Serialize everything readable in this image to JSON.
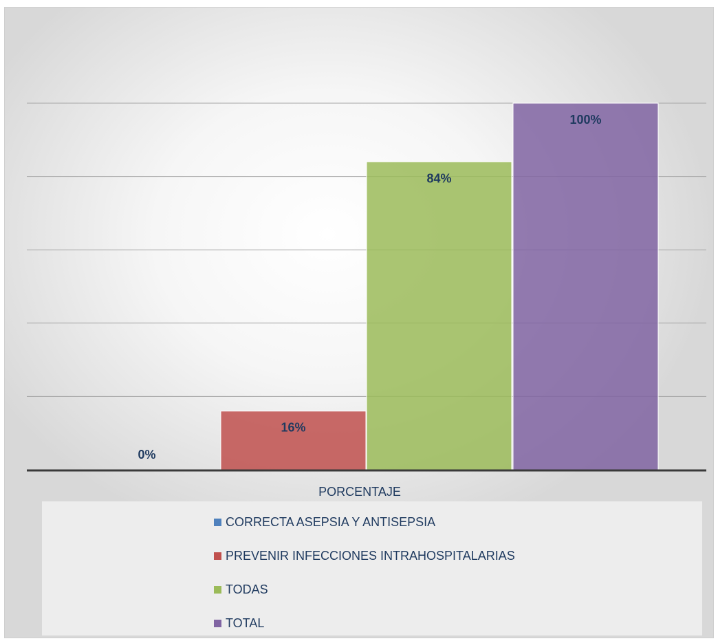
{
  "chart_data": {
    "type": "bar",
    "title": "",
    "xlabel": "PORCENTAJE",
    "ylabel": "",
    "ylim": [
      0,
      100
    ],
    "categories": [
      "PORCENTAJE"
    ],
    "series": [
      {
        "name": "CORRECTA ASEPSIA Y ANTISEPSIA",
        "values": [
          0
        ],
        "label": "0%",
        "color": "#4f81bd"
      },
      {
        "name": "PREVENIR INFECCIONES INTRAHOSPITALARIAS",
        "values": [
          16
        ],
        "label": "16%",
        "color": "#c0504d"
      },
      {
        "name": "TODAS",
        "values": [
          84
        ],
        "label": "84%",
        "color": "#9bbb59"
      },
      {
        "name": "TOTAL",
        "values": [
          100
        ],
        "label": "100%",
        "color": "#8064a2"
      }
    ],
    "grid": true,
    "legend_position": "bottom"
  },
  "legend": {
    "items": [
      {
        "label": "CORRECTA ASEPSIA Y ANTISEPSIA",
        "color": "#4f81bd"
      },
      {
        "label": "PREVENIR INFECCIONES INTRAHOSPITALARIAS",
        "color": "#c0504d"
      },
      {
        "label": "TODAS",
        "color": "#9bbb59"
      },
      {
        "label": "TOTAL",
        "color": "#8064a2"
      }
    ]
  }
}
